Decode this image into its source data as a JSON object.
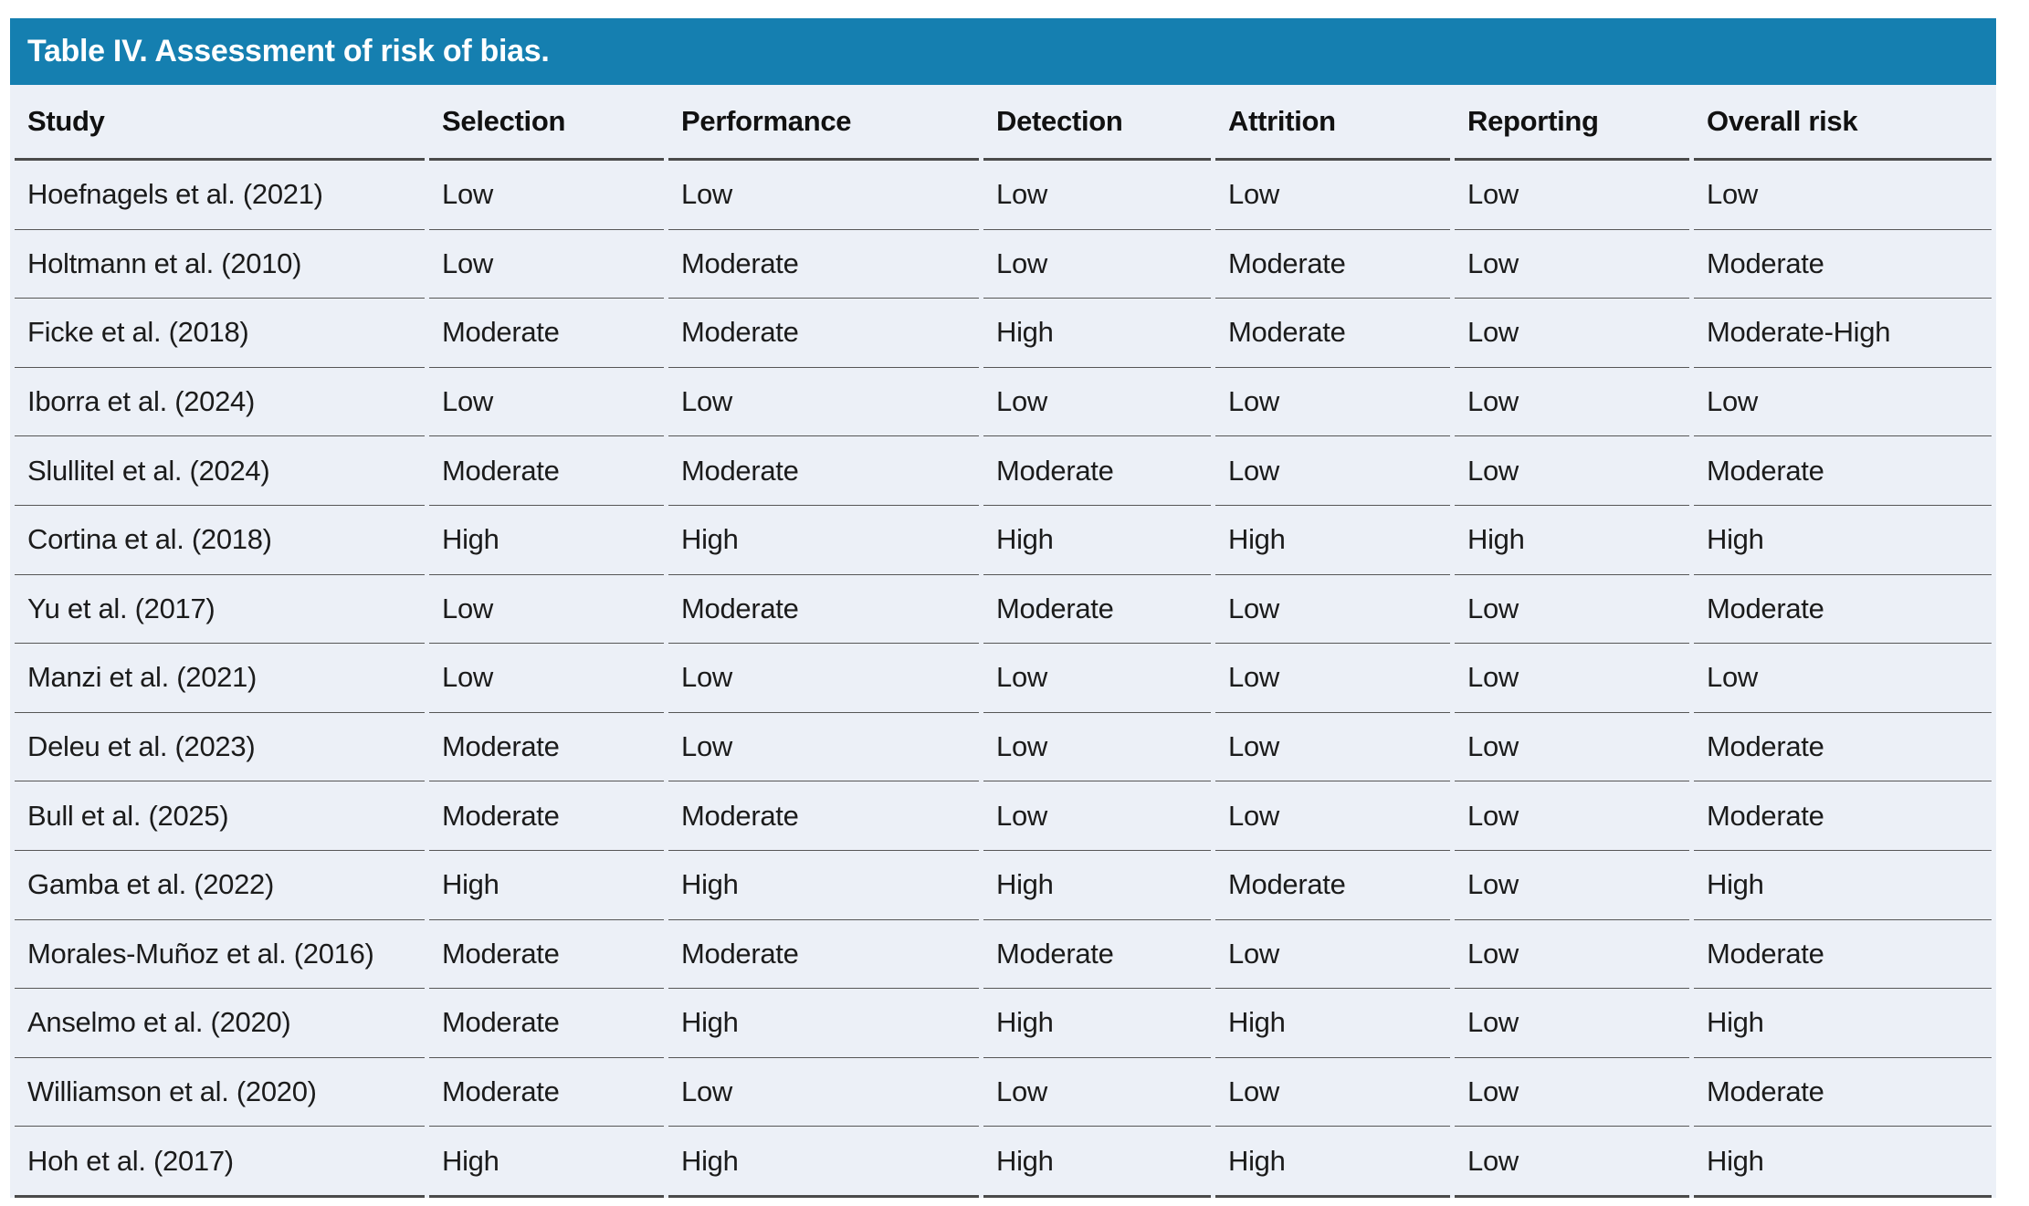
{
  "title": "Table IV. Assessment of risk of bias.",
  "columns": [
    "Study",
    "Selection",
    "Performance",
    "Detection",
    "Attrition",
    "Reporting",
    "Overall risk"
  ],
  "rows": [
    {
      "study": "Hoefnagels et al. (2021)",
      "selection": "Low",
      "performance": "Low",
      "detection": "Low",
      "attrition": "Low",
      "reporting": "Low",
      "overall": "Low"
    },
    {
      "study": "Holtmann et al. (2010)",
      "selection": "Low",
      "performance": "Moderate",
      "detection": "Low",
      "attrition": "Moderate",
      "reporting": "Low",
      "overall": "Moderate"
    },
    {
      "study": "Ficke et al. (2018)",
      "selection": "Moderate",
      "performance": "Moderate",
      "detection": "High",
      "attrition": "Moderate",
      "reporting": "Low",
      "overall": "Moderate-High"
    },
    {
      "study": "Iborra et al. (2024)",
      "selection": "Low",
      "performance": "Low",
      "detection": "Low",
      "attrition": "Low",
      "reporting": "Low",
      "overall": "Low"
    },
    {
      "study": "Slullitel et al. (2024)",
      "selection": "Moderate",
      "performance": "Moderate",
      "detection": "Moderate",
      "attrition": "Low",
      "reporting": "Low",
      "overall": "Moderate"
    },
    {
      "study": "Cortina et al. (2018)",
      "selection": "High",
      "performance": "High",
      "detection": "High",
      "attrition": "High",
      "reporting": "High",
      "overall": "High"
    },
    {
      "study": "Yu et al. (2017)",
      "selection": "Low",
      "performance": "Moderate",
      "detection": "Moderate",
      "attrition": "Low",
      "reporting": "Low",
      "overall": "Moderate"
    },
    {
      "study": "Manzi et al. (2021)",
      "selection": "Low",
      "performance": "Low",
      "detection": "Low",
      "attrition": "Low",
      "reporting": "Low",
      "overall": "Low"
    },
    {
      "study": "Deleu et al. (2023)",
      "selection": "Moderate",
      "performance": "Low",
      "detection": "Low",
      "attrition": "Low",
      "reporting": "Low",
      "overall": "Moderate"
    },
    {
      "study": "Bull et al. (2025)",
      "selection": "Moderate",
      "performance": "Moderate",
      "detection": "Low",
      "attrition": "Low",
      "reporting": "Low",
      "overall": "Moderate"
    },
    {
      "study": "Gamba et al. (2022)",
      "selection": "High",
      "performance": "High",
      "detection": "High",
      "attrition": "Moderate",
      "reporting": "Low",
      "overall": "High"
    },
    {
      "study": "Morales-Muñoz et al. (2016)",
      "selection": "Moderate",
      "performance": "Moderate",
      "detection": "Moderate",
      "attrition": "Low",
      "reporting": "Low",
      "overall": "Moderate"
    },
    {
      "study": "Anselmo et al. (2020)",
      "selection": "Moderate",
      "performance": "High",
      "detection": "High",
      "attrition": "High",
      "reporting": "Low",
      "overall": "High"
    },
    {
      "study": "Williamson et al. (2020)",
      "selection": "Moderate",
      "performance": "Low",
      "detection": "Low",
      "attrition": "Low",
      "reporting": "Low",
      "overall": "Moderate"
    },
    {
      "study": "Hoh et al. (2017)",
      "selection": "High",
      "performance": "High",
      "detection": "High",
      "attrition": "High",
      "reporting": "Low",
      "overall": "High"
    }
  ],
  "colors": {
    "title_bar": "#157FB0",
    "table_background": "#ECF0F7",
    "header_rule": "#4A4A4A",
    "row_rule": "#565656",
    "title_text": "#FFFFFF",
    "body_text": "#1B1B1B"
  }
}
